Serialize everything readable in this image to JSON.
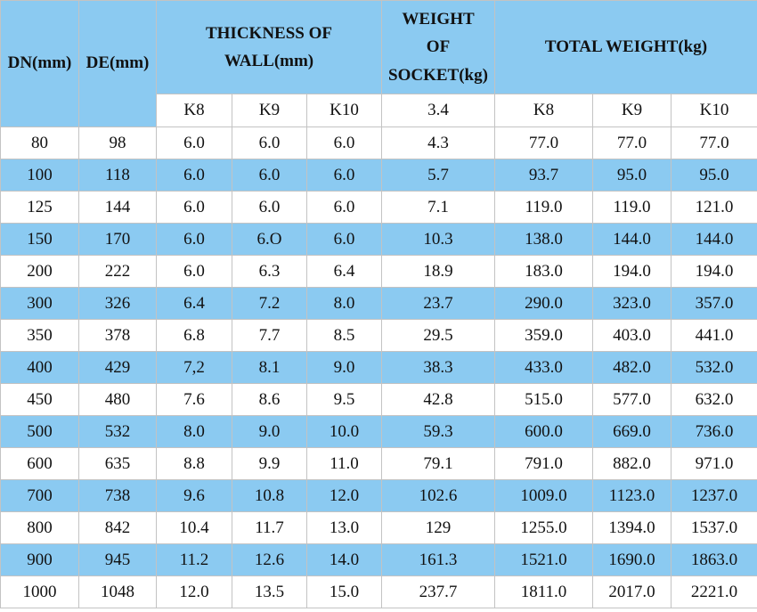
{
  "colors": {
    "header_blue": "#8bcaf1",
    "stripe_blue": "#8bcaf1",
    "border_gray": "#c3c3c3",
    "text": "#111111"
  },
  "table": {
    "header": {
      "dn": "DN(mm)",
      "de": "DE(mm)",
      "thickness_lines": [
        "THICKNESS OF",
        "WALL(mm)"
      ],
      "socket_lines": [
        "WEIGHT",
        "OF",
        "SOCKET(kg)"
      ],
      "total": "TOTAL WEIGHT(kg)"
    },
    "subheader": [
      "K8",
      "K9",
      "K10",
      "3.4",
      "K8",
      "K9",
      "K10"
    ],
    "rows": [
      [
        "80",
        "98",
        "6.0",
        "6.0",
        "6.0",
        "4.3",
        "77.0",
        "77.0",
        "77.0"
      ],
      [
        "100",
        "118",
        "6.0",
        "6.0",
        "6.0",
        "5.7",
        "93.7",
        "95.0",
        "95.0"
      ],
      [
        "125",
        "144",
        "6.0",
        "6.0",
        "6.0",
        "7.1",
        "119.0",
        "119.0",
        "121.0"
      ],
      [
        "150",
        "170",
        "6.0",
        "6.O",
        "6.0",
        "10.3",
        "138.0",
        "144.0",
        "144.0"
      ],
      [
        "200",
        "222",
        "6.0",
        "6.3",
        "6.4",
        "18.9",
        "183.0",
        "194.0",
        "194.0"
      ],
      [
        "300",
        "326",
        "6.4",
        "7.2",
        "8.0",
        "23.7",
        "290.0",
        "323.0",
        "357.0"
      ],
      [
        "350",
        "378",
        "6.8",
        "7.7",
        "8.5",
        "29.5",
        "359.0",
        "403.0",
        "441.0"
      ],
      [
        "400",
        "429",
        "7,2",
        "8.1",
        "9.0",
        "38.3",
        "433.0",
        "482.0",
        "532.0"
      ],
      [
        "450",
        "480",
        "7.6",
        "8.6",
        "9.5",
        "42.8",
        "515.0",
        "577.0",
        "632.0"
      ],
      [
        "500",
        "532",
        "8.0",
        "9.0",
        "10.0",
        "59.3",
        "600.0",
        "669.0",
        "736.0"
      ],
      [
        "600",
        "635",
        "8.8",
        "9.9",
        "11.0",
        "79.1",
        "791.0",
        "882.0",
        "971.0"
      ],
      [
        "700",
        "738",
        "9.6",
        "10.8",
        "12.0",
        "102.6",
        "1009.0",
        "1123.0",
        "1237.0"
      ],
      [
        "800",
        "842",
        "10.4",
        "11.7",
        "13.0",
        "129",
        "1255.0",
        "1394.0",
        "1537.0"
      ],
      [
        "900",
        "945",
        "11.2",
        "12.6",
        "14.0",
        "161.3",
        "1521.0",
        "1690.0",
        "1863.0"
      ],
      [
        "1000",
        "1048",
        "12.0",
        "13.5",
        "15.0",
        "237.7",
        "1811.0",
        "2017.0",
        "2221.0"
      ]
    ]
  }
}
